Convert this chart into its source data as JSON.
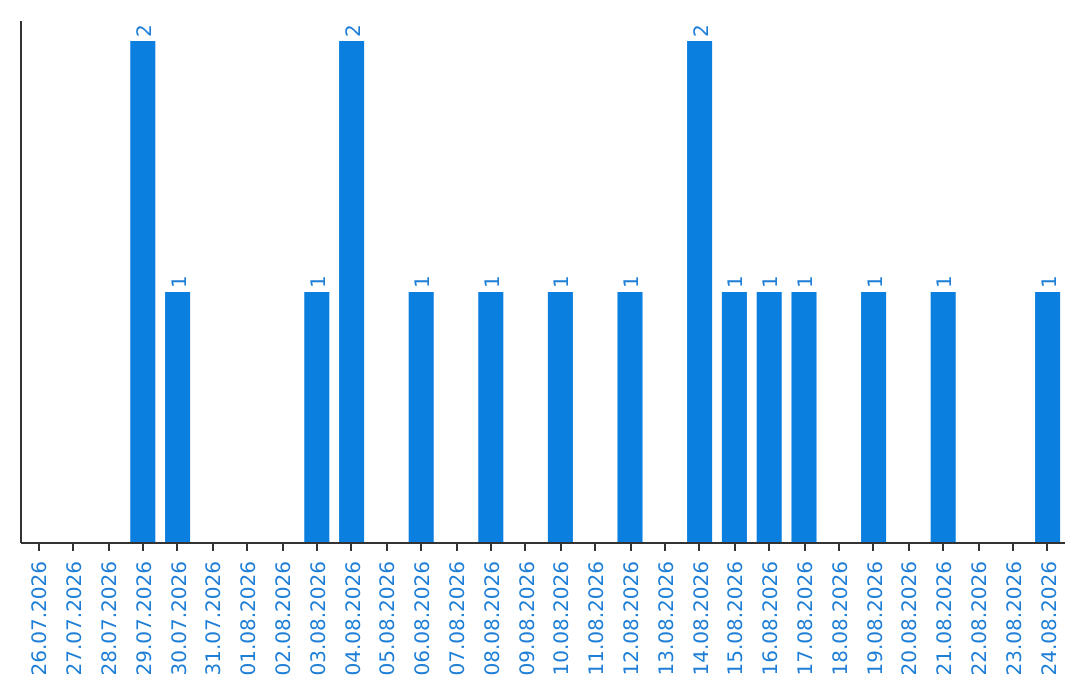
{
  "chart_data": {
    "type": "bar",
    "categories": [
      "26.07.2026",
      "27.07.2026",
      "28.07.2026",
      "29.07.2026",
      "30.07.2026",
      "31.07.2026",
      "01.08.2026",
      "02.08.2026",
      "03.08.2026",
      "04.08.2026",
      "05.08.2026",
      "06.08.2026",
      "07.08.2026",
      "08.08.2026",
      "09.08.2026",
      "10.08.2026",
      "11.08.2026",
      "12.08.2026",
      "13.08.2026",
      "14.08.2026",
      "15.08.2026",
      "16.08.2026",
      "17.08.2026",
      "18.08.2026",
      "19.08.2026",
      "20.08.2026",
      "21.08.2026",
      "22.08.2026",
      "23.08.2026",
      "24.08.2026"
    ],
    "values": [
      0,
      0,
      0,
      2,
      1,
      0,
      0,
      0,
      1,
      2,
      0,
      1,
      0,
      1,
      0,
      1,
      0,
      1,
      0,
      2,
      1,
      1,
      1,
      0,
      1,
      0,
      1,
      0,
      0,
      1
    ],
    "value_labels": [
      null,
      null,
      null,
      "2",
      "1",
      null,
      null,
      null,
      "1",
      "2",
      null,
      "1",
      null,
      "1",
      null,
      "1",
      null,
      "1",
      null,
      "2",
      "1",
      "1",
      "1",
      null,
      "1",
      null,
      "1",
      null,
      null,
      "1"
    ],
    "color": "#0a7fe0",
    "ylim": [
      0,
      2.08
    ],
    "tick_labels": "x",
    "grid": false
  }
}
